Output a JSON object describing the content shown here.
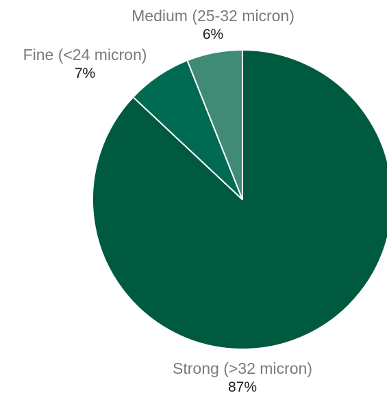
{
  "chart_data": {
    "type": "pie",
    "slices": [
      {
        "label": "Strong (>32 micron)",
        "value": 87,
        "display": "87%",
        "color": "#005a3f"
      },
      {
        "label": "Fine (<24 micron)",
        "value": 7,
        "display": "7%",
        "color": "#006b52"
      },
      {
        "label": "Medium (25-32 micron)",
        "value": 6,
        "display": "6%",
        "color": "#3f8b76"
      }
    ],
    "start": "12 o'clock",
    "direction": "clockwise",
    "slice_border_color": "#ffffff",
    "legend": "none"
  }
}
